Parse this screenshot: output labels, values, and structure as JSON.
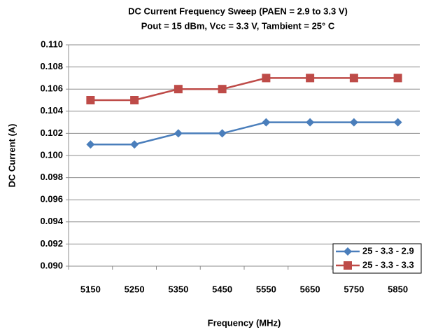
{
  "chart_data": {
    "type": "line",
    "title": "DC Current Frequency Sweep (PAEN = 2.9 to 3.3 V)",
    "subtitle": "Pout = 15 dBm, Vcc = 3.3 V, Tambient = 25° C",
    "x_label": "Frequency (MHz)",
    "y_label": "DC Current (A)",
    "categories": [
      5150,
      5250,
      5350,
      5450,
      5550,
      5650,
      5750,
      5850
    ],
    "series": [
      {
        "name": "25 - 3.3 - 2.9",
        "color": "#4a7ebb",
        "marker": "diamond",
        "values": [
          0.101,
          0.101,
          0.102,
          0.102,
          0.103,
          0.103,
          0.103,
          0.103
        ]
      },
      {
        "name": "25 - 3.3 - 3.3",
        "color": "#be4b48",
        "marker": "square",
        "values": [
          0.105,
          0.105,
          0.106,
          0.106,
          0.107,
          0.107,
          0.107,
          0.107
        ]
      }
    ],
    "ylim": [
      0.09,
      0.11
    ],
    "yticks": [
      {
        "value": 0.09,
        "label": "0.090"
      },
      {
        "value": 0.092,
        "label": "0.092"
      },
      {
        "value": 0.094,
        "label": "0.094"
      },
      {
        "value": 0.096,
        "label": "0.096"
      },
      {
        "value": 0.098,
        "label": "0.098"
      },
      {
        "value": 0.1,
        "label": "0.100"
      },
      {
        "value": 0.102,
        "label": "0.102"
      },
      {
        "value": 0.104,
        "label": "0.104"
      },
      {
        "value": 0.106,
        "label": "0.106"
      },
      {
        "value": 0.108,
        "label": "0.108"
      },
      {
        "value": 0.11,
        "label": "0.110"
      }
    ],
    "grid": true,
    "legend": "lower right"
  }
}
